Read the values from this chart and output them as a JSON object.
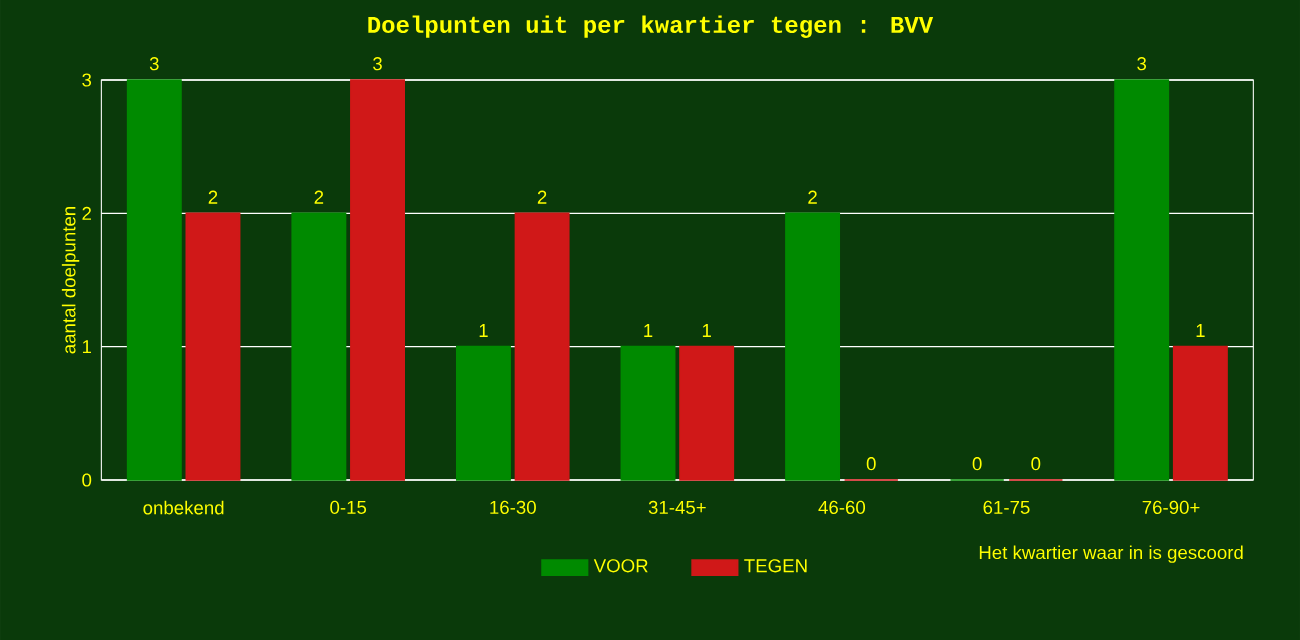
{
  "chart_data": {
    "type": "bar",
    "title": "Doelpunten uit per kwartier tegen : BVV",
    "xlabel": "Het kwartier waar in is gescoord",
    "ylabel": "aantal doelpunten",
    "categories": [
      "onbekend",
      "0-15",
      "16-30",
      "31-45+",
      "46-60",
      "61-75",
      "76-90+"
    ],
    "series": [
      {
        "name": "VOOR",
        "color": "#008a00",
        "values": [
          3,
          2,
          1,
          1,
          2,
          0,
          3
        ]
      },
      {
        "name": "TEGEN",
        "color": "#d01818",
        "values": [
          2,
          3,
          2,
          1,
          0,
          0,
          1
        ]
      }
    ],
    "ylim": [
      0,
      3
    ],
    "yticks": [
      0,
      1,
      2,
      3
    ],
    "grid": "y",
    "legend": "bottom",
    "data_labels": true
  }
}
